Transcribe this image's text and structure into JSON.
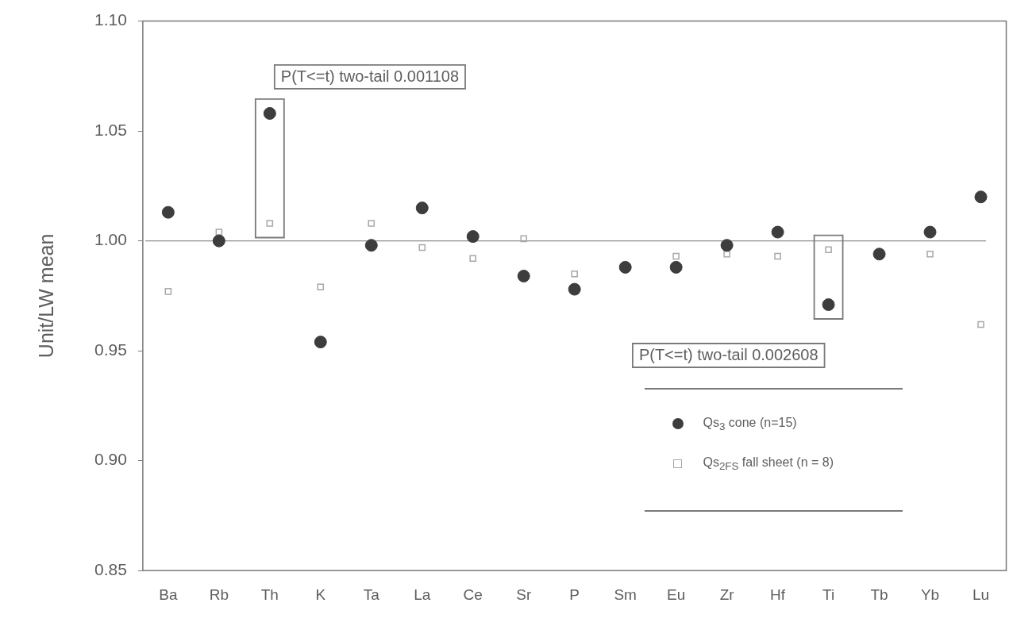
{
  "chart_data": {
    "type": "scatter",
    "ylabel": "Unit/LW mean",
    "categories": [
      "Ba",
      "Rb",
      "Th",
      "K",
      "Ta",
      "La",
      "Ce",
      "Sr",
      "P",
      "Sm",
      "Eu",
      "Zr",
      "Hf",
      "Ti",
      "Tb",
      "Yb",
      "Lu"
    ],
    "series": [
      {
        "name": "Qs$_{3}$ cone (n=15)",
        "color": "#3d3d3d",
        "marker": "circle",
        "values": [
          1.013,
          1.0,
          1.058,
          0.954,
          0.998,
          1.015,
          1.002,
          0.984,
          0.978,
          0.988,
          0.988,
          0.998,
          1.004,
          0.971,
          0.994,
          1.004,
          1.02
        ]
      },
      {
        "name": "Qs$_{2FS}$ fall sheet (n = 8)",
        "color": "#a8a8a8",
        "marker": "square",
        "values": [
          0.977,
          1.004,
          1.008,
          0.979,
          1.008,
          0.997,
          0.992,
          1.001,
          0.985,
          null,
          0.993,
          0.994,
          0.993,
          0.996,
          null,
          0.994,
          0.962
        ]
      }
    ],
    "ylim": [
      0.85,
      1.1
    ],
    "yticks": [
      0.85,
      {
        "value": 0.9,
        "label": "0.90"
      },
      0.95,
      {
        "value": 1,
        "label": "1.00"
      },
      1.05,
      {
        "value": 1.1,
        "label": "1.10"
      }
    ],
    "ref_lines": [
      {
        "axis": "y",
        "value": 1,
        "color": "#8c8c8c"
      }
    ],
    "annotations": [
      {
        "text": "P(T<=t) two-tail 0.001108",
        "x": "Th",
        "y": 1.058
      },
      {
        "text": "P(T<=t) two-tail 0.002608",
        "x": "Ti",
        "y": 0.971
      }
    ],
    "legend": "bottom right"
  }
}
